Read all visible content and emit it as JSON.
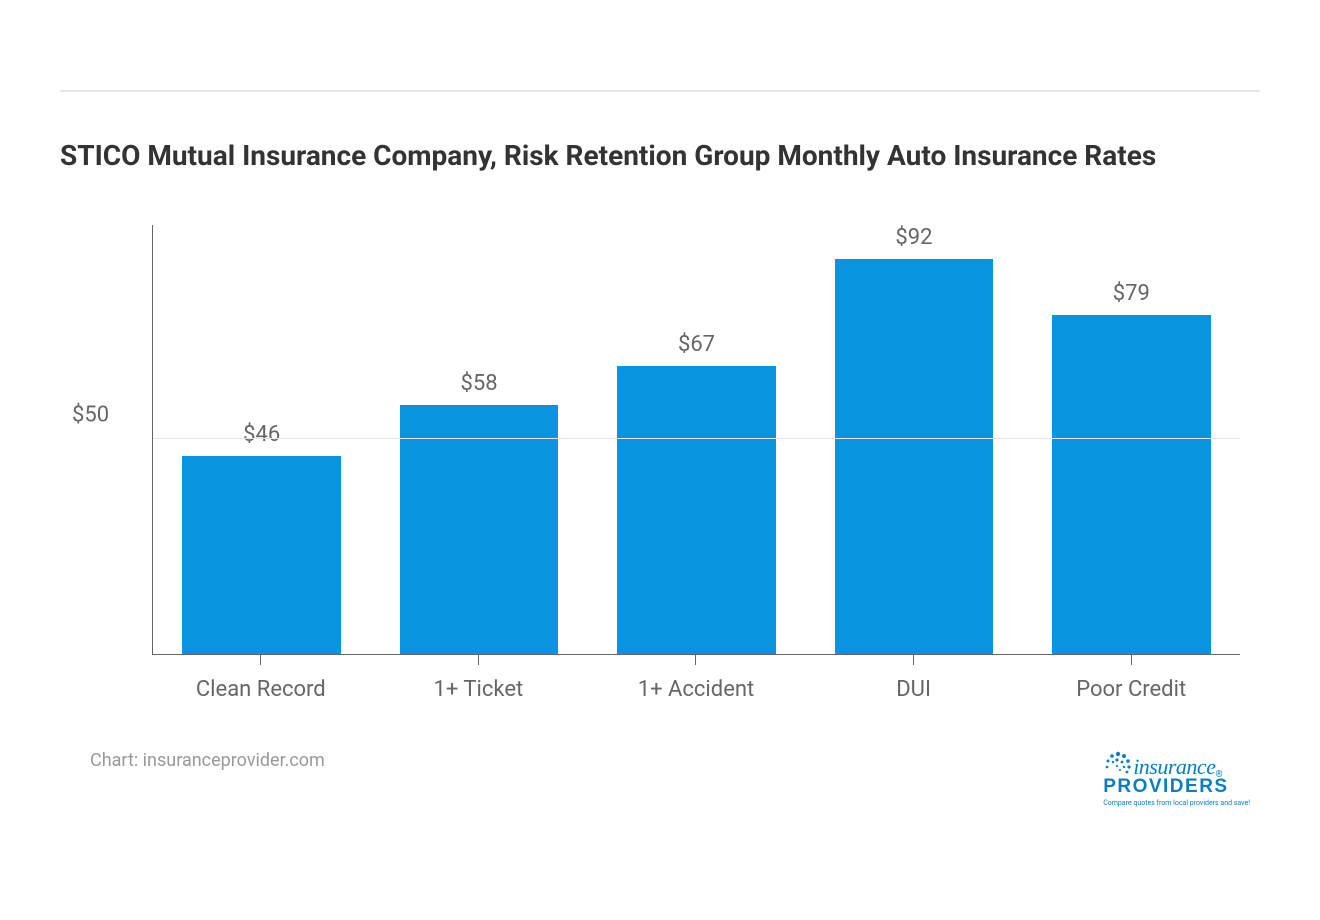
{
  "chart": {
    "type": "bar",
    "title": "STICO Mutual Insurance Company, Risk Retention Group Monthly Auto Insurance Rates",
    "title_fontsize": 28,
    "title_color": "#333333",
    "categories": [
      "Clean Record",
      "1+ Ticket",
      "1+ Accident",
      "DUI",
      "Poor Credit"
    ],
    "values": [
      46,
      58,
      67,
      92,
      79
    ],
    "value_labels": [
      "$46",
      "$58",
      "$67",
      "$92",
      "$79"
    ],
    "bar_color": "#0894de",
    "background_color": "#ffffff",
    "grid_color": "#e6e6e6",
    "axis_color": "#666666",
    "label_color": "#666666",
    "label_fontsize": 22,
    "ylim": [
      0,
      100
    ],
    "yticks": [
      50
    ],
    "ytick_labels": [
      "$50"
    ],
    "bar_width_ratio": 0.73,
    "divider_color": "#e6e6e6"
  },
  "footer": {
    "source": "Chart: insuranceprovider.com",
    "source_color": "#999999",
    "source_fontsize": 18
  },
  "logo": {
    "word1": "insurance",
    "word2": "PROVIDERS",
    "registered": "®",
    "tagline": "Compare quotes from local providers and save!",
    "color": "#0a7fbf"
  }
}
